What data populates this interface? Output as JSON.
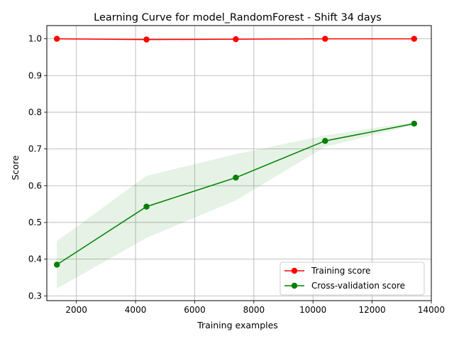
{
  "chart_data": {
    "type": "line",
    "title": "Learning Curve for model_RandomForest - Shift 34 days",
    "xlabel": "Training examples",
    "ylabel": "Score",
    "xlim": [
      1000,
      14000
    ],
    "ylim": [
      0.3,
      1.0
    ],
    "grid": true,
    "legend_position": "lower-right",
    "x_ticks": [
      2000,
      4000,
      6000,
      8000,
      10000,
      12000,
      14000
    ],
    "y_ticks": [
      0.3,
      0.4,
      0.5,
      0.6,
      0.7,
      0.8,
      0.9,
      1.0
    ],
    "x_tick_labels": [
      "2000",
      "4000",
      "6000",
      "8000",
      "10000",
      "12000",
      "14000"
    ],
    "y_tick_labels": [
      "0.3",
      "0.4",
      "0.5",
      "0.6",
      "0.7",
      "0.8",
      "0.9",
      "1.0"
    ],
    "x": [
      1340,
      4370,
      7390,
      10410,
      13420
    ],
    "series": [
      {
        "name": "Training score",
        "color": "#ff0000",
        "values": [
          1.0,
          0.998,
          0.999,
          1.0,
          1.0
        ],
        "band_lower": [
          0.998,
          0.995,
          0.997,
          0.999,
          0.999
        ],
        "band_upper": [
          1.002,
          1.001,
          1.001,
          1.001,
          1.001
        ]
      },
      {
        "name": "Cross-validation score",
        "color": "#008000",
        "values": [
          0.385,
          0.543,
          0.622,
          0.722,
          0.769
        ],
        "band_lower": [
          0.32,
          0.458,
          0.56,
          0.706,
          0.765
        ],
        "band_upper": [
          0.449,
          0.627,
          0.686,
          0.737,
          0.773
        ]
      }
    ]
  }
}
